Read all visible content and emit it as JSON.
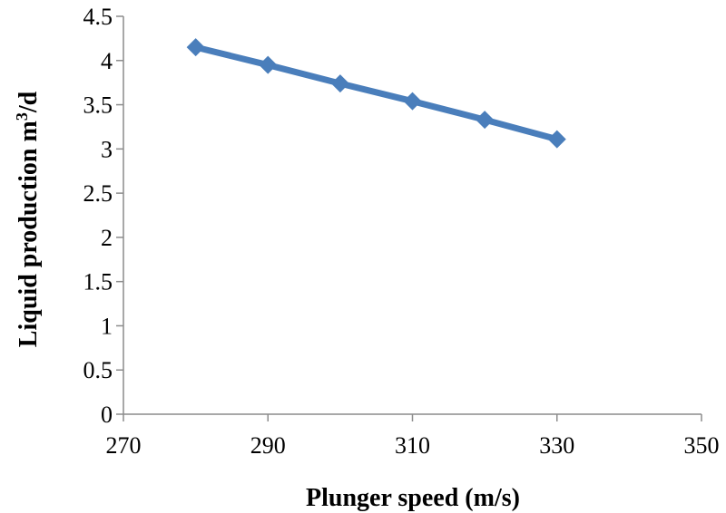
{
  "chart_data": {
    "type": "line",
    "title": "",
    "xlabel": "Plunger speed (m/s)",
    "ylabel": "Liquid production m³/d",
    "ylabel_main": "Liquid production m",
    "ylabel_sup": "3",
    "ylabel_tail": "/d",
    "xlim": [
      270,
      350
    ],
    "ylim": [
      0,
      4.5
    ],
    "x_ticks": [
      "270",
      "290",
      "310",
      "330",
      "350"
    ],
    "y_ticks": [
      "0",
      "0.5",
      "1",
      "1.5",
      "2",
      "2.5",
      "3",
      "3.5",
      "4",
      "4.5"
    ],
    "grid": false,
    "legend": "none",
    "series": [
      {
        "name": "Liquid production",
        "color": "#4a7ebb",
        "marker": "diamond",
        "x": [
          280,
          290,
          300,
          310,
          320,
          330
        ],
        "values": [
          4.15,
          3.95,
          3.74,
          3.54,
          3.33,
          3.11
        ]
      }
    ]
  }
}
